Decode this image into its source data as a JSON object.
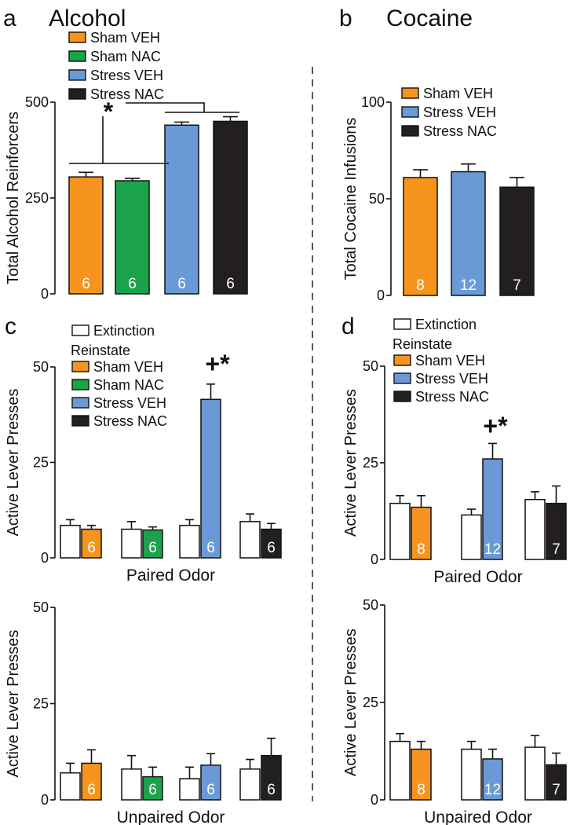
{
  "figure": {
    "panels": [
      {
        "letter": "a",
        "title": "Alcohol"
      },
      {
        "letter": "b",
        "title": "Cocaine"
      },
      {
        "letter": "c",
        "title": ""
      },
      {
        "letter": "d",
        "title": ""
      }
    ]
  },
  "colors": {
    "sham_veh": "#F7941D",
    "sham_nac": "#1AA34A",
    "stress_veh": "#6A9AD6",
    "stress_nac": "#231F20",
    "extinction": "#FFFFFF"
  },
  "chart_data": [
    {
      "id": "a",
      "type": "bar",
      "title": "Alcohol",
      "ylabel": "Total Alcohol Reinforcers",
      "ylim": [
        0,
        500
      ],
      "yticks": [
        "0",
        "250",
        "500"
      ],
      "legend": [
        "Sham VEH",
        "Sham NAC",
        "Stress VEH",
        "Stress NAC"
      ],
      "legend_position": "top-left",
      "categories": [
        "Sham VEH",
        "Sham NAC",
        "Stress VEH",
        "Stress NAC"
      ],
      "values": [
        305,
        295,
        440,
        450
      ],
      "errors": [
        12,
        6,
        8,
        12
      ],
      "n": [
        "6",
        "6",
        "6",
        "6"
      ],
      "annotation": "*"
    },
    {
      "id": "b",
      "type": "bar",
      "title": "Cocaine",
      "ylabel": "Total Cocaine Infusions",
      "ylim": [
        0,
        100
      ],
      "yticks": [
        "0",
        "50",
        "100"
      ],
      "legend": [
        "Sham VEH",
        "Stress VEH",
        "Stress NAC"
      ],
      "legend_position": "top-left",
      "categories": [
        "Sham VEH",
        "Stress VEH",
        "Stress NAC"
      ],
      "values": [
        61,
        64,
        56
      ],
      "errors": [
        4,
        4,
        5
      ],
      "n": [
        "8",
        "12",
        "7"
      ]
    },
    {
      "id": "c",
      "type": "bar",
      "ylabel": "Active Lever Presses",
      "ylim": [
        0,
        50
      ],
      "yticks": [
        "0",
        "25",
        "50"
      ],
      "legend_title": "Reinstate",
      "legend": [
        "Extinction",
        "Sham VEH",
        "Sham NAC",
        "Stress VEH",
        "Stress NAC"
      ],
      "legend_position": "top-left",
      "paired": {
        "xlabel": "Paired Odor",
        "groups": [
          "Sham VEH",
          "Sham NAC",
          "Stress VEH",
          "Stress NAC"
        ],
        "extinction": [
          8.5,
          7.5,
          8.5,
          9.5
        ],
        "extinction_err": [
          1.5,
          2,
          1.5,
          2
        ],
        "reinstate": [
          7.5,
          7.3,
          41.5,
          7.5
        ],
        "reinstate_err": [
          1,
          0.8,
          4,
          1.5
        ],
        "n": [
          "6",
          "6",
          "6",
          "6"
        ],
        "annotation": "+*"
      },
      "unpaired": {
        "xlabel": "Unpaired Odor",
        "groups": [
          "Sham VEH",
          "Sham NAC",
          "Stress VEH",
          "Stress NAC"
        ],
        "extinction": [
          7,
          8,
          5.5,
          8
        ],
        "extinction_err": [
          2.5,
          3.5,
          3,
          2.5
        ],
        "reinstate": [
          9.5,
          6,
          9,
          11.5
        ],
        "reinstate_err": [
          3.5,
          2.5,
          3,
          4.5
        ],
        "n": [
          "6",
          "6",
          "6",
          "6"
        ]
      }
    },
    {
      "id": "d",
      "type": "bar",
      "ylabel": "Active Lever Presses",
      "ylim": [
        0,
        50
      ],
      "yticks": [
        "0",
        "25",
        "50"
      ],
      "legend_title": "Reinstate",
      "legend": [
        "Extinction",
        "Sham VEH",
        "Stress VEH",
        "Stress NAC"
      ],
      "legend_position": "top-left",
      "paired": {
        "xlabel": "Paired Odor",
        "groups": [
          "Sham VEH",
          "Stress VEH",
          "Stress NAC"
        ],
        "extinction": [
          14.5,
          11.5,
          15.5
        ],
        "extinction_err": [
          2,
          1.5,
          2
        ],
        "reinstate": [
          13.5,
          26,
          14.5
        ],
        "reinstate_err": [
          3,
          4,
          4.5
        ],
        "n": [
          "8",
          "12",
          "7"
        ],
        "annotation": "+*"
      },
      "unpaired": {
        "xlabel": "Unpaired Odor",
        "groups": [
          "Sham VEH",
          "Stress VEH",
          "Stress NAC"
        ],
        "extinction": [
          15,
          13,
          13.5
        ],
        "extinction_err": [
          2,
          2,
          3
        ],
        "reinstate": [
          13,
          10.5,
          9
        ],
        "reinstate_err": [
          2,
          2.5,
          3
        ],
        "n": [
          "8",
          "12",
          "7"
        ]
      }
    }
  ]
}
